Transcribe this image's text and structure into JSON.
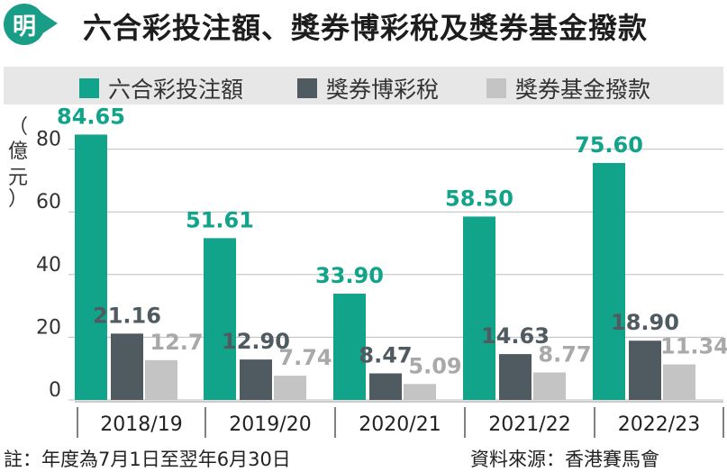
{
  "header": {
    "logo_text": "明",
    "title": "六合彩投注額、獎券博彩稅及獎券基金撥款"
  },
  "colors": {
    "teal": "#12a38b",
    "dark": "#4f5b61",
    "light": "#c4c4c4"
  },
  "chart_data": {
    "type": "bar",
    "ylabel": "（億元）",
    "ylim": [
      0,
      90
    ],
    "yticks": [
      0,
      20,
      40,
      60,
      80
    ],
    "categories": [
      "2018/19",
      "2019/20",
      "2020/21",
      "2021/22",
      "2022/23"
    ],
    "series": [
      {
        "name": "六合彩投注額",
        "values": [
          84.65,
          51.61,
          33.9,
          58.5,
          75.6
        ],
        "labels": [
          "84.65",
          "51.61",
          "33.90",
          "58.50",
          "75.60"
        ]
      },
      {
        "name": "獎券博彩稅",
        "values": [
          21.16,
          12.9,
          8.47,
          14.63,
          18.9
        ],
        "labels": [
          "21.16",
          "12.90",
          "8.47",
          "14.63",
          "18.90"
        ]
      },
      {
        "name": "獎券基金撥款",
        "values": [
          12.7,
          7.74,
          5.09,
          8.77,
          11.34
        ],
        "labels": [
          "12.7",
          "7.74",
          "5.09",
          "8.77",
          "11.34"
        ]
      }
    ],
    "legend_position": "top",
    "grid": true
  },
  "footer": {
    "note": "註：年度為7月1日至翌年6月30日",
    "source": "資料來源：香港賽馬會"
  }
}
